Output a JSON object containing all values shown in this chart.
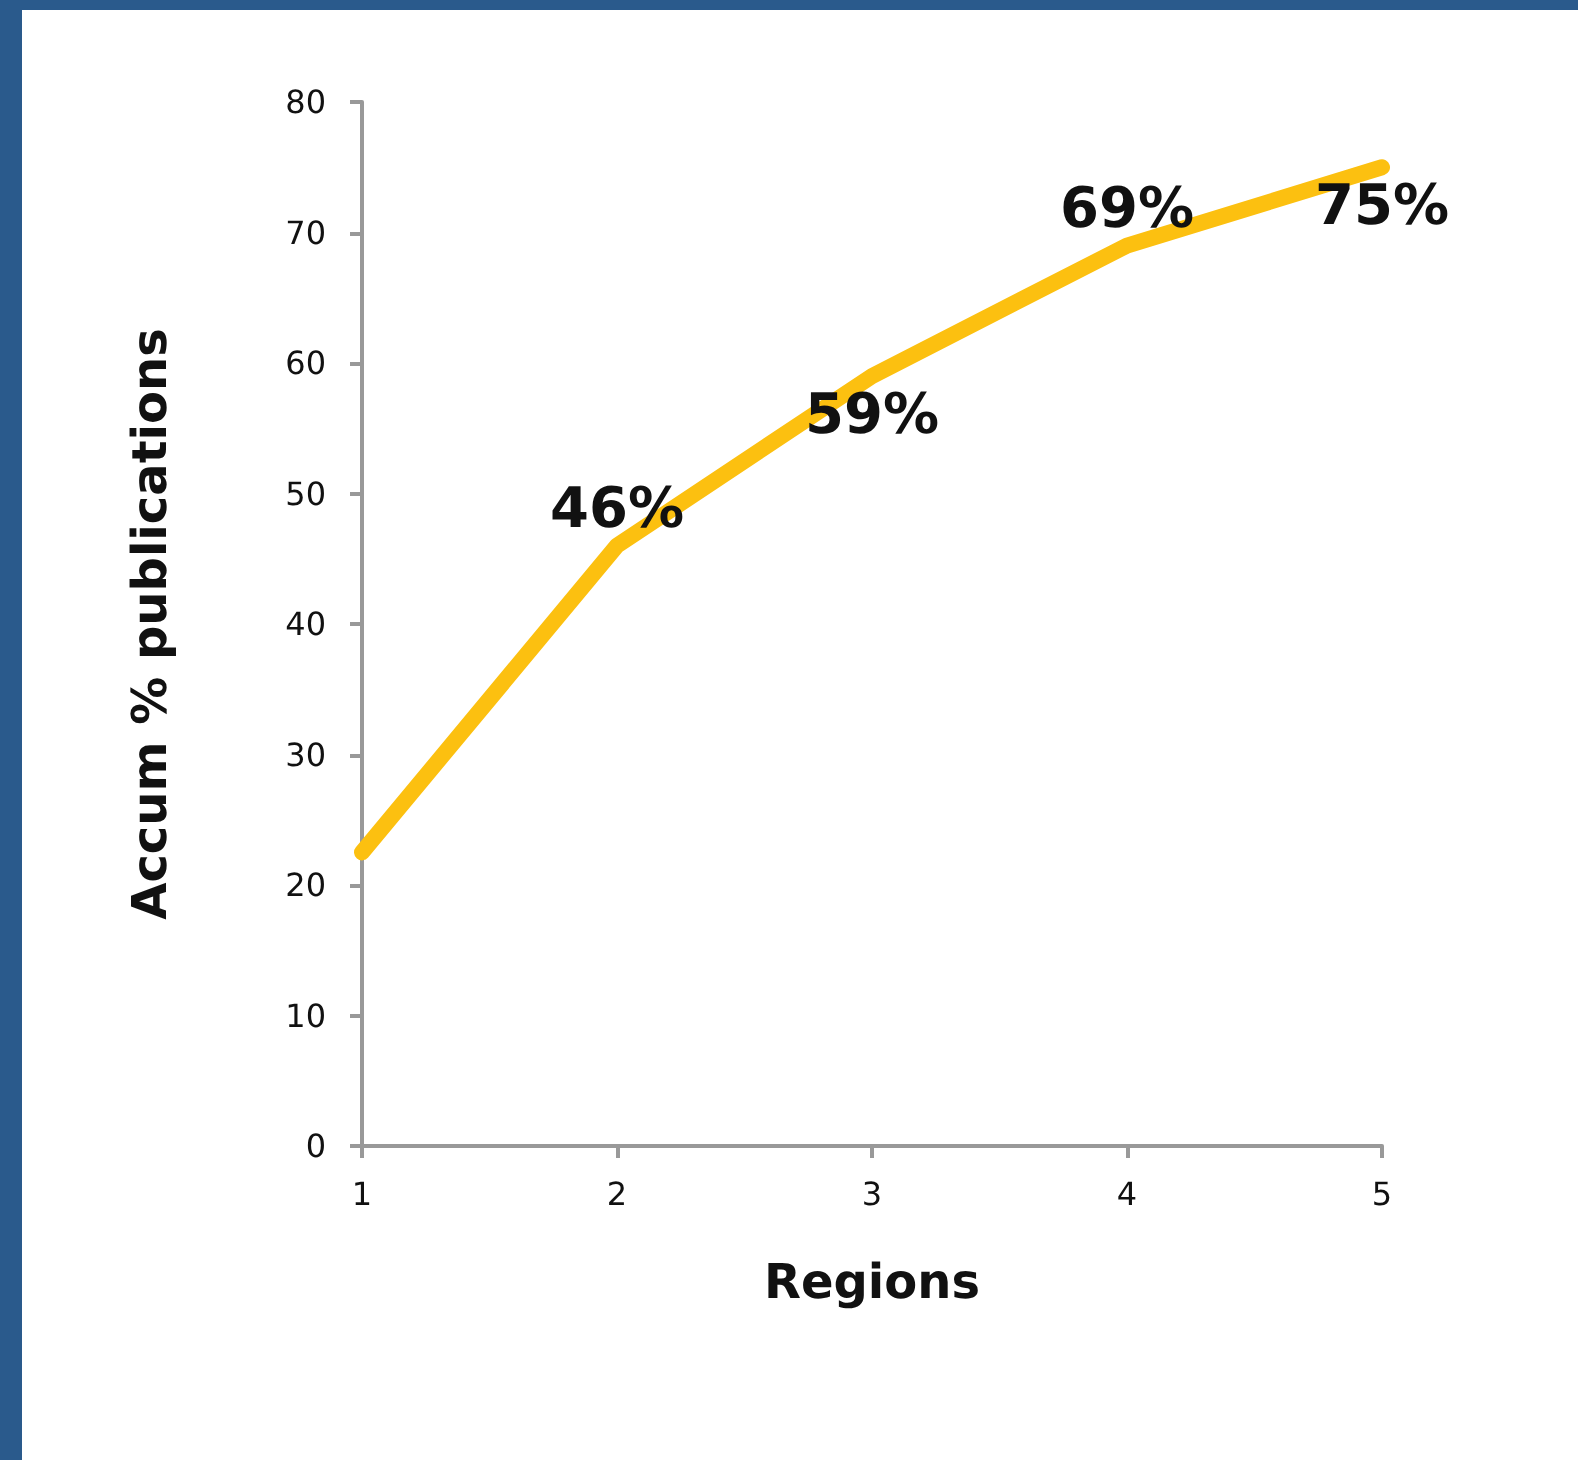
{
  "chart_data": {
    "type": "line",
    "xlabel": "Regions",
    "ylabel": "Accum % publications",
    "categories": [
      "1",
      "2",
      "3",
      "4",
      "5"
    ],
    "series": [
      {
        "color": "#fcc010",
        "values": [
          22.5,
          46,
          59,
          69,
          75
        ],
        "value_labels": [
          null,
          "46%",
          "59%",
          "69%",
          "75%"
        ]
      }
    ],
    "ylim": [
      0,
      80
    ],
    "yticks": [
      0,
      10,
      20,
      30,
      40,
      50,
      60,
      70,
      80
    ],
    "grid": false,
    "marker": "none",
    "line_style": "solid"
  }
}
